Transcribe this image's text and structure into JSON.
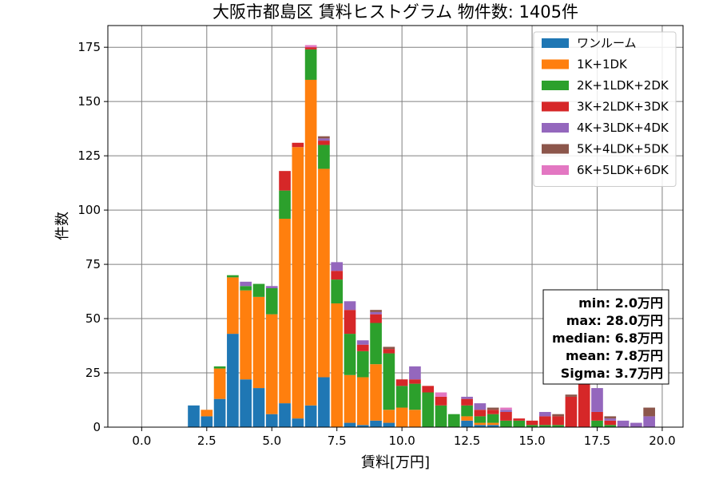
{
  "chart_data": {
    "type": "bar",
    "stacked": true,
    "title": "大阪市都島区 賃料ヒストグラム  物件数: 1405件",
    "xlabel": "賃料[万円]",
    "ylabel": "件数",
    "xlim": [
      -1.3,
      20.8
    ],
    "ylim": [
      0,
      185
    ],
    "xticks": [
      0.0,
      2.5,
      5.0,
      7.5,
      10.0,
      12.5,
      15.0,
      17.5,
      20.0
    ],
    "xtick_labels": [
      "0.0",
      "2.5",
      "5.0",
      "7.5",
      "10.0",
      "12.5",
      "15.0",
      "17.5",
      "20.0"
    ],
    "yticks": [
      0,
      25,
      50,
      75,
      100,
      125,
      150,
      175
    ],
    "ytick_labels": [
      "0",
      "25",
      "50",
      "75",
      "100",
      "125",
      "150",
      "175"
    ],
    "grid": true,
    "legend_position": "top-right",
    "bin_width": 0.5,
    "x": [
      2.0,
      2.5,
      3.0,
      3.5,
      4.0,
      4.5,
      5.0,
      5.5,
      6.0,
      6.5,
      7.0,
      7.5,
      8.0,
      8.5,
      9.0,
      9.5,
      10.0,
      10.5,
      11.0,
      11.5,
      12.0,
      12.5,
      13.0,
      13.5,
      14.0,
      14.5,
      15.0,
      15.5,
      16.0,
      16.5,
      17.0,
      17.5,
      18.0,
      18.5,
      19.0,
      19.5
    ],
    "series": [
      {
        "name": "ワンルーム",
        "color": "#1f77b4",
        "values": [
          10,
          5,
          13,
          43,
          22,
          18,
          6,
          11,
          4,
          10,
          23,
          0,
          2,
          1,
          3,
          2,
          0,
          0,
          0,
          0,
          0,
          3,
          1,
          1,
          0,
          0,
          0,
          0,
          0,
          0,
          0,
          0,
          0,
          0,
          0,
          0
        ]
      },
      {
        "name": "1K+1DK",
        "color": "#ff7f0e",
        "values": [
          0,
          3,
          14,
          26,
          41,
          42,
          46,
          85,
          125,
          150,
          96,
          57,
          22,
          22,
          26,
          6,
          9,
          8,
          0,
          0,
          0,
          2,
          1,
          1,
          0,
          0,
          0,
          0,
          0,
          0,
          0,
          0,
          0,
          0,
          0,
          0
        ]
      },
      {
        "name": "2K+1LDK+2DK",
        "color": "#2ca02c",
        "values": [
          0,
          0,
          1,
          1,
          2,
          6,
          12,
          13,
          0,
          14,
          11,
          11,
          19,
          12,
          19,
          26,
          10,
          12,
          16,
          10,
          6,
          5,
          3,
          4,
          3,
          3,
          1,
          1,
          1,
          0,
          0,
          3,
          1,
          0,
          0,
          0
        ]
      },
      {
        "name": "3K+2LDK+3DK",
        "color": "#d62728",
        "values": [
          0,
          0,
          0,
          0,
          0,
          0,
          0,
          9,
          2,
          1,
          2,
          4,
          11,
          3,
          4,
          2,
          3,
          2,
          3,
          4,
          0,
          3,
          3,
          2,
          4,
          1,
          2,
          4,
          4,
          14,
          22,
          4,
          2,
          0,
          0,
          0
        ]
      },
      {
        "name": "4K+3LDK+4DK",
        "color": "#9467bd",
        "values": [
          0,
          0,
          0,
          0,
          2,
          0,
          1,
          0,
          0,
          0,
          1,
          4,
          4,
          2,
          1,
          0,
          0,
          6,
          0,
          0,
          0,
          1,
          3,
          0,
          1,
          0,
          0,
          2,
          0,
          0,
          0,
          11,
          1,
          3,
          2,
          5
        ]
      },
      {
        "name": "5K+4LDK+5DK",
        "color": "#8c564b",
        "values": [
          0,
          0,
          0,
          0,
          0,
          0,
          0,
          0,
          0,
          0,
          1,
          0,
          0,
          0,
          1,
          1,
          0,
          0,
          0,
          0,
          0,
          0,
          0,
          1,
          0,
          0,
          0,
          0,
          1,
          1,
          0,
          0,
          1,
          0,
          0,
          4
        ]
      },
      {
        "name": "6K+5LDK+6DK",
        "color": "#e377c2",
        "values": [
          0,
          0,
          0,
          0,
          0,
          0,
          0,
          0,
          0,
          1,
          0,
          0,
          0,
          0,
          0,
          0,
          0,
          0,
          0,
          2,
          0,
          0,
          0,
          0,
          1,
          0,
          0,
          0,
          0,
          0,
          0,
          0,
          0,
          0,
          0,
          0
        ]
      }
    ],
    "stats": [
      "min: 2.0万円",
      "max: 28.0万円",
      "median: 6.8万円",
      "mean: 7.8万円",
      "Sigma: 3.7万円"
    ]
  }
}
